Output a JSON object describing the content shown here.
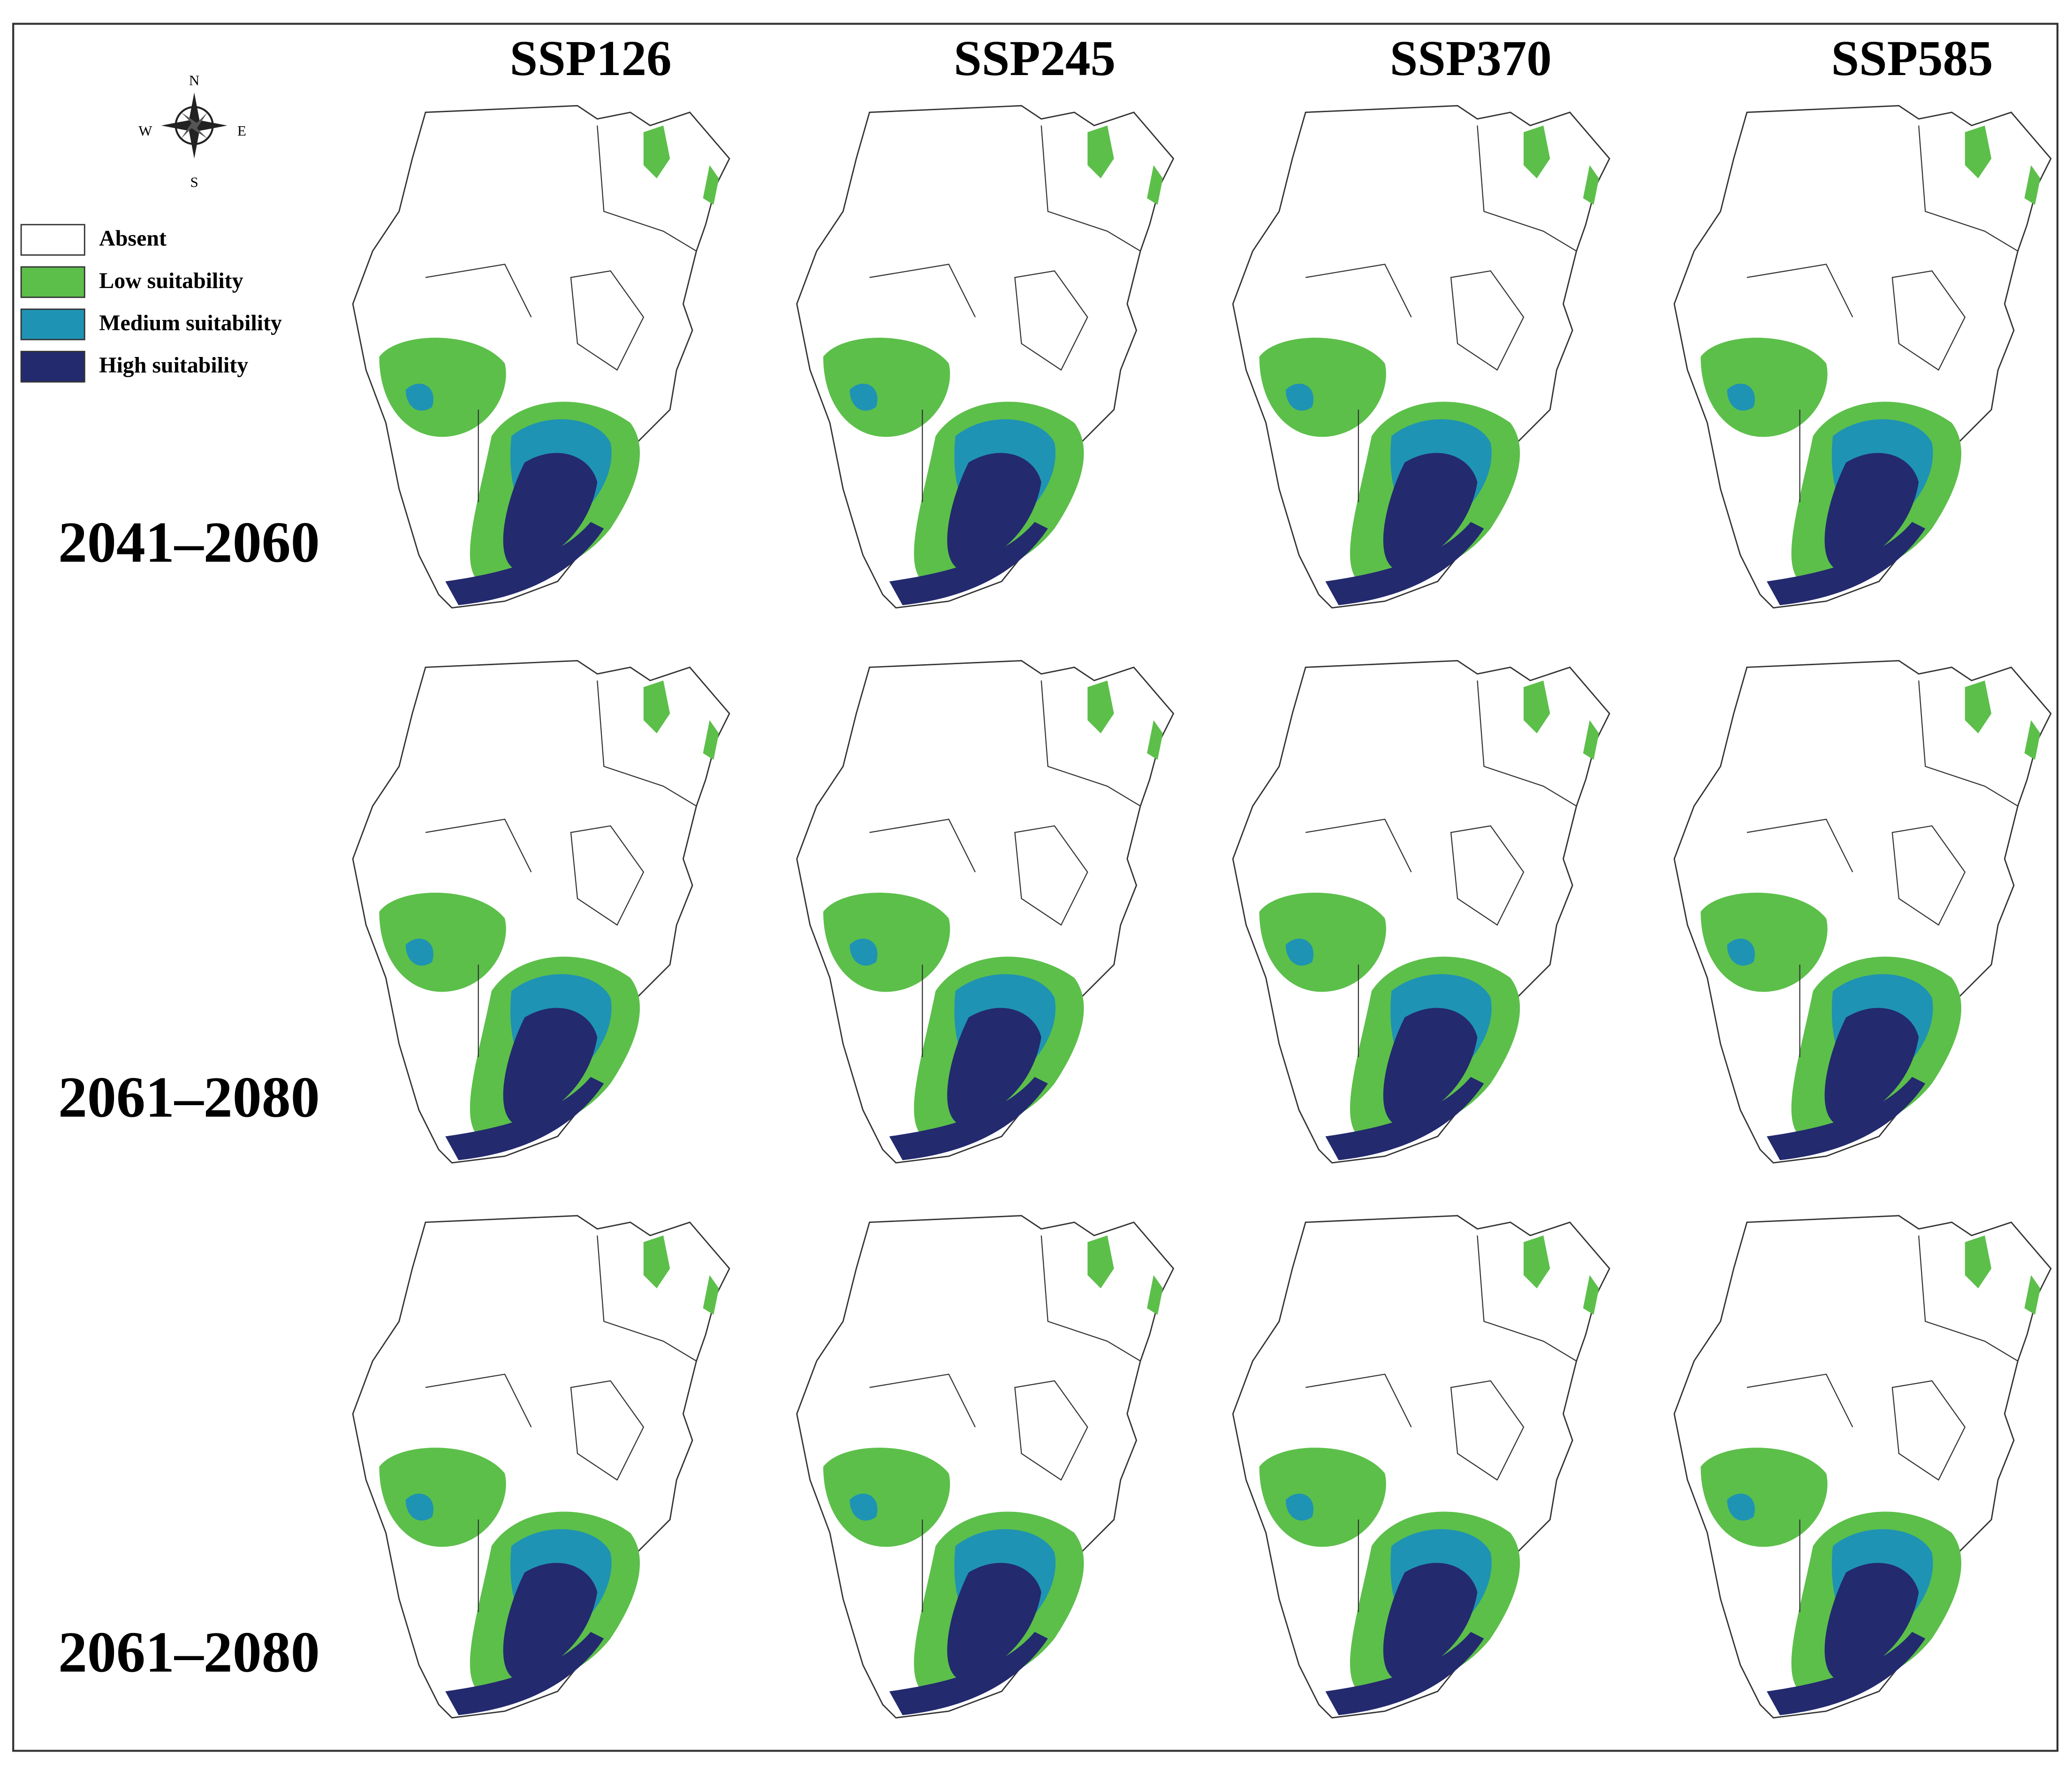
{
  "columns": [
    "SSP126",
    "SSP245",
    "SSP370",
    "SSP585"
  ],
  "rows": [
    "2041–2060",
    "2061–2080",
    "2061–2080"
  ],
  "legend": [
    {
      "label": "Absent",
      "color": "#ffffff"
    },
    {
      "label": "Low suitability",
      "color": "#5cbf4a"
    },
    {
      "label": "Medium suitability",
      "color": "#1f93b3"
    },
    {
      "label": "High suitability",
      "color": "#232a6e"
    }
  ],
  "compass": {
    "n": "N",
    "e": "E",
    "s": "S",
    "w": "W"
  }
}
